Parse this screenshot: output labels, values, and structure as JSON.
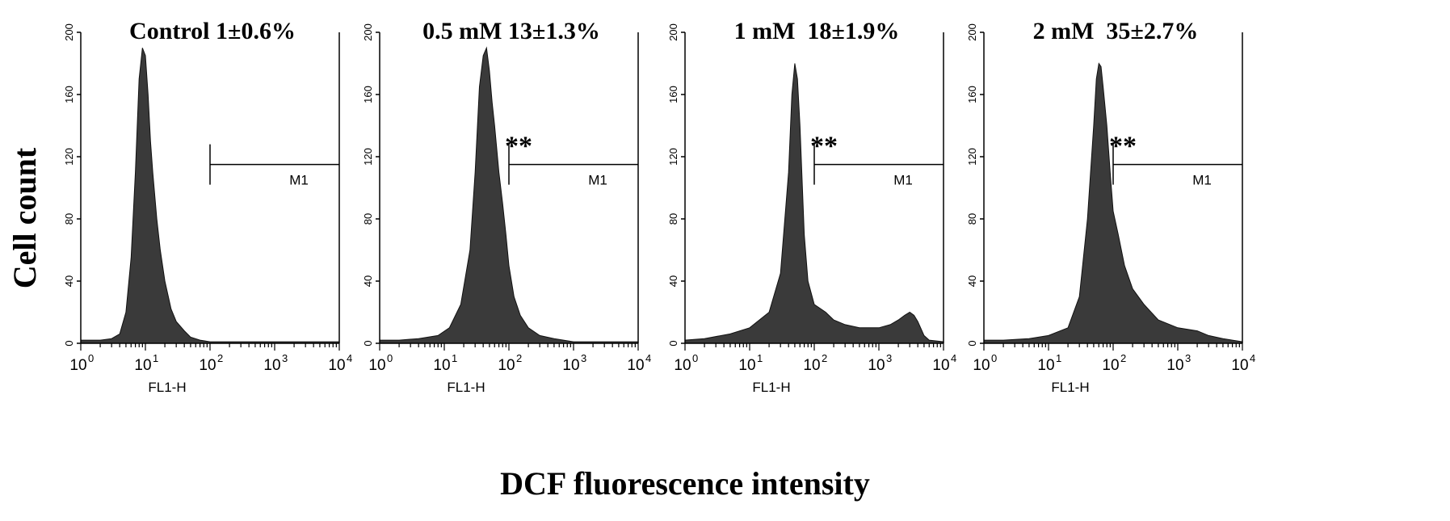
{
  "figure": {
    "ylabel": "Cell count",
    "xlabel": "DCF fluorescence intensity"
  },
  "chart_data": [
    {
      "type": "area",
      "title": "Control 1±0.6%",
      "xlabel": "FL1-H",
      "x_scale": "log",
      "xlim": [
        1,
        10000
      ],
      "ylim": [
        0,
        200
      ],
      "yticks": [
        0,
        40,
        80,
        120,
        160,
        200
      ],
      "xticks": [
        "10",
        "10",
        "10",
        "10",
        "10"
      ],
      "xtick_exponents": [
        "0",
        "1",
        "2",
        "3",
        "4"
      ],
      "gate": {
        "label": "M1",
        "start": 100,
        "end": 10000,
        "level": 115
      },
      "marker": "",
      "x": [
        1,
        1.5,
        2,
        3,
        4,
        5,
        6,
        7,
        8,
        9,
        10,
        11,
        12,
        13,
        15,
        17,
        20,
        25,
        30,
        40,
        50,
        70,
        100,
        10000
      ],
      "values": [
        2,
        2,
        2,
        3,
        6,
        20,
        55,
        110,
        170,
        190,
        185,
        160,
        130,
        110,
        80,
        60,
        40,
        22,
        14,
        8,
        4,
        2,
        1,
        1
      ]
    },
    {
      "type": "area",
      "title": "0.5 mM 13±1.3%",
      "xlabel": "FL1-H",
      "x_scale": "log",
      "xlim": [
        1,
        10000
      ],
      "ylim": [
        0,
        200
      ],
      "yticks": [
        0,
        40,
        80,
        120,
        160,
        200
      ],
      "xticks": [
        "10",
        "10",
        "10",
        "10",
        "10"
      ],
      "xtick_exponents": [
        "0",
        "1",
        "2",
        "3",
        "4"
      ],
      "gate": {
        "label": "M1",
        "start": 100,
        "end": 10000,
        "level": 115
      },
      "marker": "**",
      "x": [
        1,
        2,
        4,
        8,
        12,
        18,
        25,
        30,
        35,
        40,
        45,
        50,
        55,
        60,
        70,
        80,
        90,
        100,
        120,
        150,
        200,
        300,
        500,
        1000,
        10000
      ],
      "values": [
        2,
        2,
        3,
        5,
        10,
        25,
        60,
        110,
        165,
        185,
        190,
        175,
        155,
        140,
        110,
        90,
        70,
        50,
        30,
        18,
        10,
        5,
        3,
        1,
        1
      ]
    },
    {
      "type": "area",
      "title": "1 mM  18±1.9%",
      "xlabel": "FL1-H",
      "x_scale": "log",
      "xlim": [
        1,
        10000
      ],
      "ylim": [
        0,
        200
      ],
      "yticks": [
        0,
        40,
        80,
        120,
        160,
        200
      ],
      "xticks": [
        "10",
        "10",
        "10",
        "10",
        "10"
      ],
      "xtick_exponents": [
        "0",
        "1",
        "2",
        "3",
        "4"
      ],
      "gate": {
        "label": "M1",
        "start": 100,
        "end": 10000,
        "level": 115
      },
      "marker": "**",
      "x": [
        1,
        2,
        5,
        10,
        20,
        30,
        40,
        45,
        50,
        55,
        60,
        70,
        80,
        100,
        150,
        200,
        300,
        500,
        1000,
        1500,
        2000,
        2500,
        3000,
        3500,
        4000,
        5000,
        6000,
        10000
      ],
      "values": [
        2,
        3,
        6,
        10,
        20,
        45,
        110,
        160,
        180,
        170,
        140,
        70,
        40,
        25,
        20,
        15,
        12,
        10,
        10,
        12,
        15,
        18,
        20,
        18,
        14,
        5,
        2,
        1
      ]
    },
    {
      "type": "area",
      "title": "2 mM  35±2.7%",
      "xlabel": "FL1-H",
      "x_scale": "log",
      "xlim": [
        1,
        10000
      ],
      "ylim": [
        0,
        200
      ],
      "yticks": [
        0,
        40,
        80,
        120,
        160,
        200
      ],
      "xticks": [
        "10",
        "10",
        "10",
        "10",
        "10"
      ],
      "xtick_exponents": [
        "0",
        "1",
        "2",
        "3",
        "4"
      ],
      "gate": {
        "label": "M1",
        "start": 100,
        "end": 10000,
        "level": 115
      },
      "marker": "**",
      "x": [
        1,
        2,
        5,
        10,
        20,
        30,
        40,
        50,
        55,
        60,
        65,
        70,
        80,
        90,
        100,
        120,
        150,
        200,
        300,
        500,
        1000,
        2000,
        3000,
        5000,
        10000
      ],
      "values": [
        2,
        2,
        3,
        5,
        10,
        30,
        80,
        140,
        170,
        180,
        178,
        165,
        140,
        110,
        85,
        70,
        50,
        35,
        25,
        15,
        10,
        8,
        5,
        3,
        1
      ]
    }
  ]
}
